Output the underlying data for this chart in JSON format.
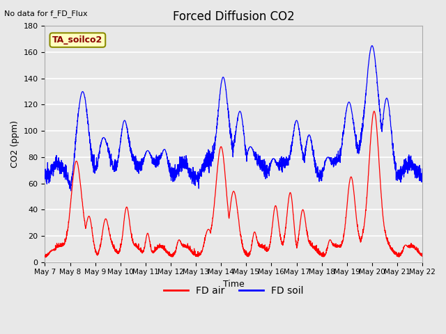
{
  "title": "Forced Diffusion CO2",
  "xlabel": "Time",
  "ylabel": "CO2 (ppm)",
  "top_left_text": "No data for f_FD_Flux",
  "annotation_box": "TA_soilco2",
  "ylim": [
    0,
    180
  ],
  "xlim": [
    0,
    360
  ],
  "tick_labels": [
    "May 7",
    "May 8",
    "May 9",
    "May 10",
    "May 11",
    "May 12",
    "May 13",
    "May 14",
    "May 15",
    "May 16",
    "May 17",
    "May 18",
    "May 19",
    "May 20",
    "May 21",
    "May 22"
  ],
  "tick_positions": [
    0,
    24,
    48,
    72,
    96,
    120,
    144,
    168,
    192,
    216,
    240,
    264,
    288,
    312,
    336,
    360
  ],
  "background_color": "#e8e8e8",
  "plot_bg_color": "#e8e8e8",
  "grid_color": "#ffffff",
  "line_red": "#ff0000",
  "line_blue": "#0000ff",
  "legend_entries": [
    "FD air",
    "FD soil"
  ],
  "figsize": [
    6.4,
    4.8
  ],
  "dpi": 100
}
